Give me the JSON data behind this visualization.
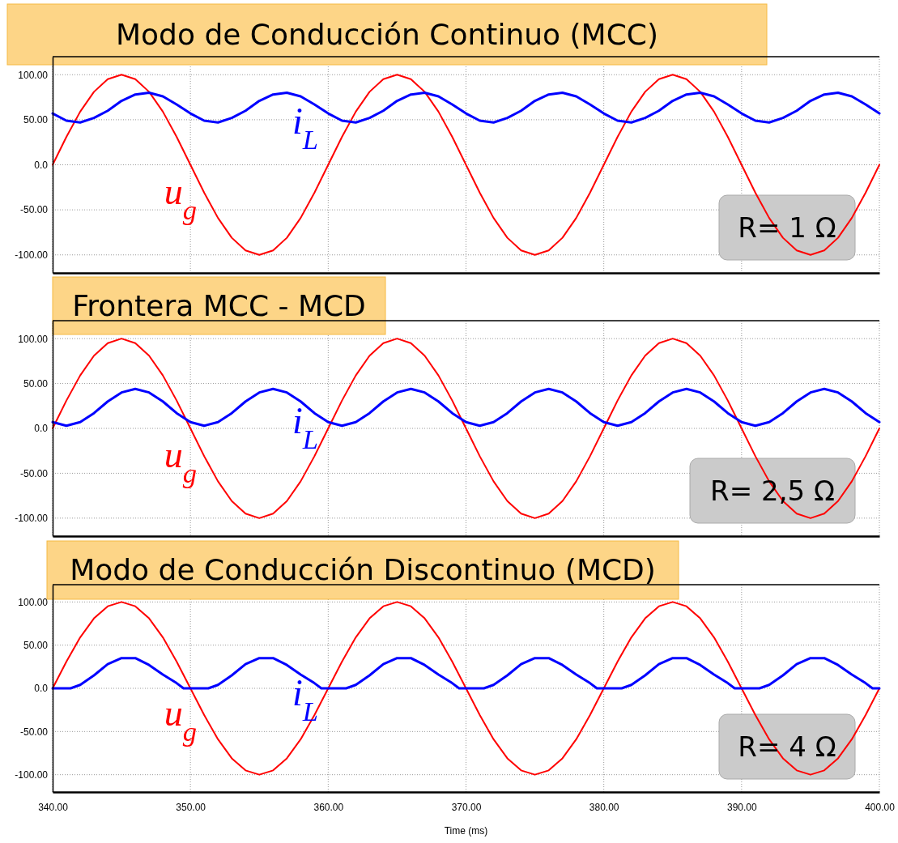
{
  "chart_data": [
    {
      "type": "line",
      "title": "Modo de Conducción Continuo (MCC)",
      "x": [
        340,
        341,
        342,
        343,
        344,
        345,
        346,
        347,
        348,
        349,
        350,
        351,
        352,
        353,
        354,
        355,
        356,
        357,
        358,
        359,
        360,
        361,
        362,
        363,
        364,
        365,
        366,
        367,
        368,
        369,
        370,
        371,
        372,
        373,
        374,
        375,
        376,
        377,
        378,
        379,
        380,
        381,
        382,
        383,
        384,
        385,
        386,
        387,
        388,
        389,
        390,
        391,
        392,
        393,
        394,
        395,
        396,
        397,
        398,
        399,
        400
      ],
      "series": [
        {
          "name": "u$_{g}$",
          "color": "#ff0000",
          "values": [
            0,
            31,
            59,
            81,
            95,
            100,
            95,
            81,
            59,
            31,
            0,
            -31,
            -59,
            -81,
            -95,
            -100,
            -95,
            -81,
            -59,
            -31,
            0,
            31,
            59,
            81,
            95,
            100,
            95,
            81,
            59,
            31,
            0,
            -31,
            -59,
            -81,
            -95,
            -100,
            -95,
            -81,
            -59,
            -31,
            0,
            31,
            59,
            81,
            95,
            100,
            95,
            81,
            59,
            31,
            0,
            -31,
            -59,
            -81,
            -95,
            -100,
            -95,
            -81,
            -59,
            -31,
            0
          ]
        },
        {
          "name": "i$_{L}$",
          "color": "#0000ff",
          "values": [
            57,
            49,
            47,
            52,
            60,
            71,
            78,
            80,
            76,
            67,
            57,
            49,
            47,
            52,
            60,
            71,
            78,
            80,
            76,
            67,
            57,
            49,
            47,
            52,
            60,
            71,
            78,
            80,
            76,
            67,
            57,
            49,
            47,
            52,
            60,
            71,
            78,
            80,
            76,
            67,
            57,
            49,
            47,
            52,
            60,
            71,
            78,
            80,
            76,
            67,
            57,
            49,
            47,
            52,
            60,
            71,
            78,
            80,
            76,
            67,
            57
          ]
        }
      ],
      "xlim": [
        340,
        400
      ],
      "ylim": [
        -120,
        120
      ],
      "yticks": [
        {
          "value": -100,
          "label": "-100.00"
        },
        {
          "value": -50,
          "label": "-50.00"
        },
        {
          "value": 0,
          "label": "0.0"
        },
        {
          "value": 50,
          "label": "50.00"
        },
        {
          "value": 100,
          "label": "100.00"
        }
      ],
      "tick_labels": "y",
      "grid": true,
      "legend": false,
      "annotations": [
        "R= 1 Ω"
      ],
      "xticks": [
        {
          "value": 340,
          "label": null
        },
        {
          "value": 350,
          "label": null
        },
        {
          "value": 360,
          "label": null
        },
        {
          "value": 370,
          "label": null
        },
        {
          "value": 380,
          "label": null
        },
        {
          "value": 390,
          "label": null
        },
        {
          "value": 400,
          "label": null
        }
      ]
    },
    {
      "type": "line",
      "title": "Frontera MCC - MCD",
      "x": [
        340,
        341,
        342,
        343,
        344,
        345,
        346,
        347,
        348,
        349,
        350,
        351,
        352,
        353,
        354,
        355,
        356,
        357,
        358,
        359,
        360,
        361,
        362,
        363,
        364,
        365,
        366,
        367,
        368,
        369,
        370,
        371,
        372,
        373,
        374,
        375,
        376,
        377,
        378,
        379,
        380,
        381,
        382,
        383,
        384,
        385,
        386,
        387,
        388,
        389,
        390,
        391,
        392,
        393,
        394,
        395,
        396,
        397,
        398,
        399,
        400
      ],
      "series": [
        {
          "name": "u$_{g}$",
          "color": "#ff0000",
          "values": [
            0,
            31,
            59,
            81,
            95,
            100,
            95,
            81,
            59,
            31,
            0,
            -31,
            -59,
            -81,
            -95,
            -100,
            -95,
            -81,
            -59,
            -31,
            0,
            31,
            59,
            81,
            95,
            100,
            95,
            81,
            59,
            31,
            0,
            -31,
            -59,
            -81,
            -95,
            -100,
            -95,
            -81,
            -59,
            -31,
            0,
            31,
            59,
            81,
            95,
            100,
            95,
            81,
            59,
            31,
            0,
            -31,
            -59,
            -81,
            -95,
            -100,
            -95,
            -81,
            -59,
            -31,
            0
          ]
        },
        {
          "name": "i$_{L}$",
          "color": "#0000ff",
          "values": [
            7,
            3,
            7,
            17,
            30,
            40,
            44,
            40,
            30,
            17,
            7,
            3,
            7,
            17,
            30,
            40,
            44,
            40,
            30,
            17,
            7,
            3,
            7,
            17,
            30,
            40,
            44,
            40,
            30,
            17,
            7,
            3,
            7,
            17,
            30,
            40,
            44,
            40,
            30,
            17,
            7,
            3,
            7,
            17,
            30,
            40,
            44,
            40,
            30,
            17,
            7,
            3,
            7,
            17,
            30,
            40,
            44,
            40,
            30,
            17,
            7
          ]
        }
      ],
      "xlim": [
        340,
        400
      ],
      "ylim": [
        -120,
        120
      ],
      "yticks": [
        {
          "value": -100,
          "label": "-100.00"
        },
        {
          "value": -50,
          "label": "-50.00"
        },
        {
          "value": 0,
          "label": "0.0"
        },
        {
          "value": 50,
          "label": "50.00"
        },
        {
          "value": 100,
          "label": "100.00"
        }
      ],
      "tick_labels": "y",
      "grid": true,
      "legend": false,
      "annotations": [
        "R= 2,5 Ω"
      ],
      "xticks": [
        {
          "value": 340,
          "label": null
        },
        {
          "value": 350,
          "label": null
        },
        {
          "value": 360,
          "label": null
        },
        {
          "value": 370,
          "label": null
        },
        {
          "value": 380,
          "label": null
        },
        {
          "value": 390,
          "label": null
        },
        {
          "value": 400,
          "label": null
        }
      ]
    },
    {
      "type": "line",
      "title": "Modo de Conducción Discontinuo (MCD)",
      "xlabel": "Time (ms)",
      "x": [
        340,
        341,
        342,
        343,
        344,
        345,
        346,
        347,
        348,
        349,
        350,
        351,
        352,
        353,
        354,
        355,
        356,
        357,
        358,
        359,
        360,
        361,
        362,
        363,
        364,
        365,
        366,
        367,
        368,
        369,
        370,
        371,
        372,
        373,
        374,
        375,
        376,
        377,
        378,
        379,
        380,
        381,
        382,
        383,
        384,
        385,
        386,
        387,
        388,
        389,
        390,
        391,
        392,
        393,
        394,
        395,
        396,
        397,
        398,
        399,
        400
      ],
      "series": [
        {
          "name": "u$_{g}$",
          "color": "#ff0000",
          "values": [
            0,
            31,
            59,
            81,
            95,
            100,
            95,
            81,
            59,
            31,
            0,
            -31,
            -59,
            -81,
            -95,
            -100,
            -95,
            -81,
            -59,
            -31,
            0,
            31,
            59,
            81,
            95,
            100,
            95,
            81,
            59,
            31,
            0,
            -31,
            -59,
            -81,
            -95,
            -100,
            -95,
            -81,
            -59,
            -31,
            0,
            31,
            59,
            81,
            95,
            100,
            95,
            81,
            59,
            31,
            0,
            -31,
            -59,
            -81,
            -95,
            -100,
            -95,
            -81,
            -59,
            -31,
            0
          ]
        },
        {
          "name": "i$_{L}$",
          "color": "#0000ff",
          "x": [
            340,
            341.3,
            342,
            343,
            344,
            345,
            346,
            347,
            348,
            349,
            349.5,
            350,
            351.3,
            352,
            353,
            354,
            355,
            356,
            357,
            358,
            359,
            359.5,
            360,
            361.3,
            362,
            363,
            364,
            365,
            366,
            367,
            368,
            369,
            369.5,
            370,
            371.3,
            372,
            373,
            374,
            375,
            376,
            377,
            378,
            379,
            379.5,
            380,
            381.3,
            382,
            383,
            384,
            385,
            386,
            387,
            388,
            389,
            389.5,
            390,
            391.3,
            392,
            393,
            394,
            395,
            396,
            397,
            398,
            399,
            399.5,
            400
          ],
          "values": [
            0,
            0,
            4,
            15,
            28,
            35,
            35,
            27,
            16,
            6,
            0,
            0,
            0,
            4,
            15,
            28,
            35,
            35,
            27,
            16,
            6,
            0,
            0,
            0,
            4,
            15,
            28,
            35,
            35,
            27,
            16,
            6,
            0,
            0,
            0,
            4,
            15,
            28,
            35,
            35,
            27,
            16,
            6,
            0,
            0,
            0,
            4,
            15,
            28,
            35,
            35,
            27,
            16,
            6,
            0,
            0,
            0,
            4,
            15,
            28,
            35,
            35,
            27,
            16,
            6,
            0,
            0
          ]
        }
      ],
      "xlim": [
        340,
        400
      ],
      "xticks": [
        {
          "value": 340,
          "label": "340.00"
        },
        {
          "value": 350,
          "label": "350.00"
        },
        {
          "value": 360,
          "label": "360.00"
        },
        {
          "value": 370,
          "label": "370.00"
        },
        {
          "value": 380,
          "label": "380.00"
        },
        {
          "value": 390,
          "label": "390.00"
        },
        {
          "value": 400,
          "label": "400.00"
        }
      ],
      "ylim": [
        -120,
        120
      ],
      "yticks": [
        {
          "value": -100,
          "label": "-100.00"
        },
        {
          "value": -50,
          "label": "-50.00"
        },
        {
          "value": 0,
          "label": "0.0"
        },
        {
          "value": 50,
          "label": "50.00"
        },
        {
          "value": 100,
          "label": "100.00"
        }
      ],
      "grid": true,
      "legend": false,
      "annotations": [
        "R= 4 Ω"
      ]
    }
  ]
}
